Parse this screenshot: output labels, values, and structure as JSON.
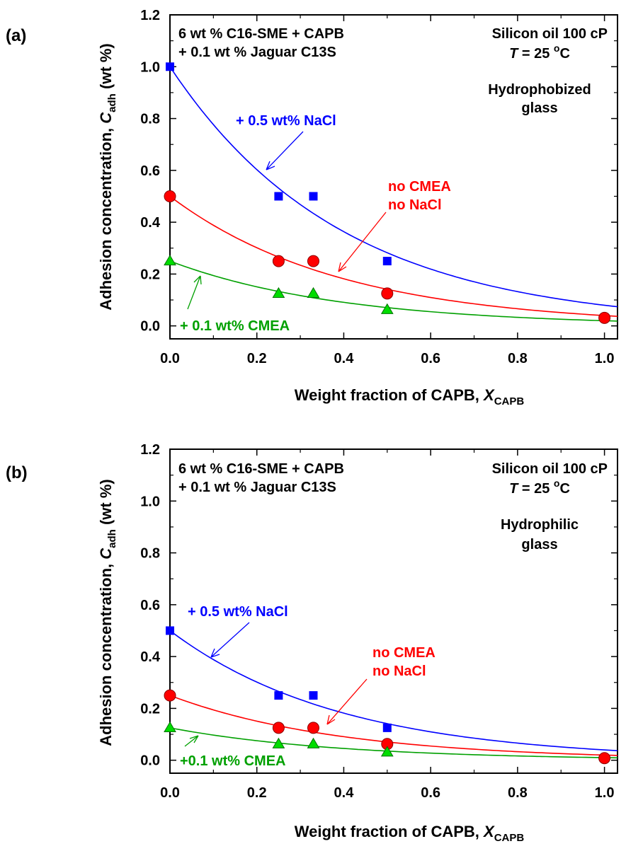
{
  "chart_data": [
    {
      "panel": "(a)",
      "type": "scatter",
      "xlabel": {
        "main": "Weight fraction of CAPB, ",
        "var": "X",
        "sub": "CAPB"
      },
      "ylabel": {
        "main": "Adhesion concentration, ",
        "var": "C",
        "sub": "adh",
        "unit": " (wt %)"
      },
      "xlim": [
        0,
        1.03
      ],
      "ylim": [
        -0.05,
        1.2
      ],
      "x_ticks": [
        "0.0",
        "0.2",
        "0.4",
        "0.6",
        "0.8",
        "1.0"
      ],
      "y_ticks": [
        "0.0",
        "0.2",
        "0.4",
        "0.6",
        "0.8",
        "1.0",
        "1.2"
      ],
      "annotations": {
        "composition_1": "6 wt % C16-SME + CAPB",
        "composition_2": "+ 0.1 wt % Jaguar C13S",
        "oil": "Silicon oil 100 cP",
        "temperature": {
          "var": "T",
          "text": " = 25 ",
          "unit": "C",
          "deg": "o"
        },
        "surface_1": "Hydrophobized",
        "surface_2": "glass"
      },
      "series": [
        {
          "label": "+ 0.5 wt% NaCl",
          "color": "#0000ff",
          "marker": "square",
          "x": [
            0,
            0.25,
            0.33,
            0.5
          ],
          "y": [
            1.0,
            0.5,
            0.5,
            0.25
          ],
          "fit": {
            "a": 1.0,
            "k": 2.53
          }
        },
        {
          "label_1": "no CMEA",
          "label_2": "no NaCl",
          "color": "#ff0000",
          "marker": "circle",
          "x": [
            0,
            0.25,
            0.33,
            0.5,
            1.0
          ],
          "y": [
            0.5,
            0.25,
            0.25,
            0.125,
            0.031
          ],
          "fit": {
            "a": 0.5,
            "k": 2.53
          }
        },
        {
          "label": "+ 0.1 wt% CMEA",
          "color": "#00a000",
          "marker": "triangle",
          "x": [
            0,
            0.25,
            0.33,
            0.5
          ],
          "y": [
            0.25,
            0.125,
            0.125,
            0.0625
          ],
          "fit": {
            "a": 0.25,
            "k": 2.53
          }
        }
      ]
    },
    {
      "panel": "(b)",
      "type": "scatter",
      "xlabel": {
        "main": "Weight fraction of CAPB, ",
        "var": "X",
        "sub": "CAPB"
      },
      "ylabel": {
        "main": "Adhesion concentration, ",
        "var": "C",
        "sub": "adh",
        "unit": " (wt %)"
      },
      "xlim": [
        0,
        1.03
      ],
      "ylim": [
        -0.05,
        1.2
      ],
      "x_ticks": [
        "0.0",
        "0.2",
        "0.4",
        "0.6",
        "0.8",
        "1.0"
      ],
      "y_ticks": [
        "0.0",
        "0.2",
        "0.4",
        "0.6",
        "0.8",
        "1.0",
        "1.2"
      ],
      "annotations": {
        "composition_1": "6 wt % C16-SME + CAPB",
        "composition_2": "+ 0.1 wt % Jaguar C13S",
        "oil": "Silicon oil 100 cP",
        "temperature": {
          "var": "T",
          "text": " = 25 ",
          "unit": "C",
          "deg": "o"
        },
        "surface_1": "Hydrophilic",
        "surface_2": "glass"
      },
      "series": [
        {
          "label": "+ 0.5 wt% NaCl",
          "color": "#0000ff",
          "marker": "square",
          "x": [
            0,
            0.25,
            0.33,
            0.5
          ],
          "y": [
            0.5,
            0.25,
            0.25,
            0.125
          ],
          "fit": {
            "a": 0.5,
            "k": 2.53
          }
        },
        {
          "label_1": "no CMEA",
          "label_2": "no NaCl",
          "color": "#ff0000",
          "marker": "circle",
          "x": [
            0,
            0.25,
            0.33,
            0.5,
            1.0
          ],
          "y": [
            0.25,
            0.125,
            0.125,
            0.0625,
            0.008
          ],
          "fit": {
            "a": 0.25,
            "k": 2.53
          }
        },
        {
          "label": "+0.1 wt% CMEA",
          "color": "#00a000",
          "marker": "triangle",
          "x": [
            0,
            0.25,
            0.33,
            0.5
          ],
          "y": [
            0.125,
            0.0625,
            0.0625,
            0.031
          ],
          "fit": {
            "a": 0.125,
            "k": 2.53
          }
        }
      ]
    }
  ]
}
